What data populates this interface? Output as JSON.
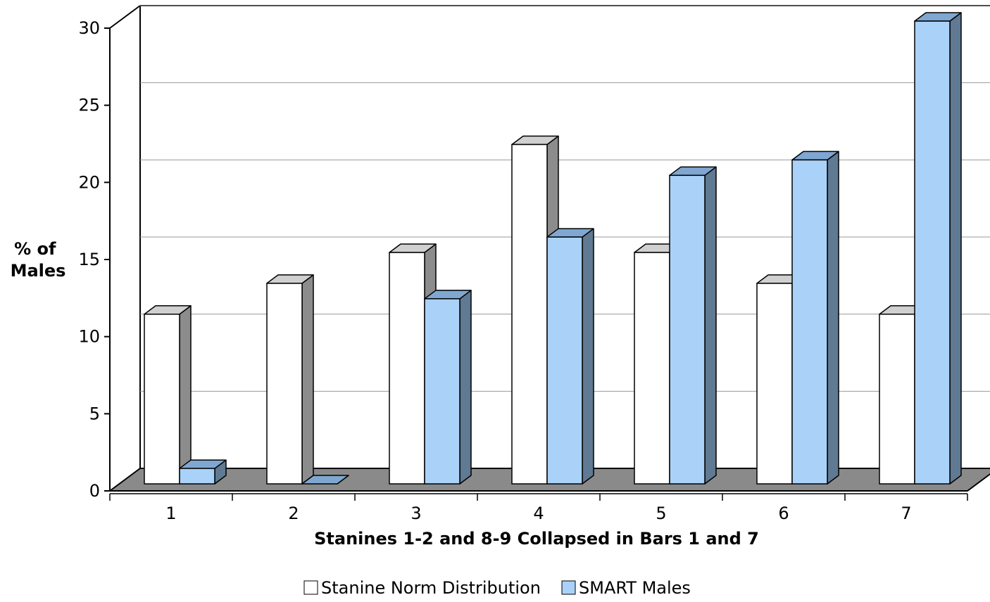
{
  "chart_data": {
    "type": "bar",
    "title": "",
    "xlabel": "Stanines 1-2 and 8-9 Collapsed in Bars 1 and 7",
    "ylabel_lines": [
      "% of",
      "Males"
    ],
    "categories": [
      "1",
      "2",
      "3",
      "4",
      "5",
      "6",
      "7"
    ],
    "ylim": [
      0,
      30
    ],
    "yticks": [
      0,
      5,
      10,
      15,
      20,
      25,
      30
    ],
    "grid": true,
    "three_d": true,
    "legend_position": "bottom",
    "series": [
      {
        "name": "Stanine Norm Distribution",
        "values": [
          11,
          13,
          15,
          22,
          15,
          13,
          11
        ],
        "colors": {
          "front": "#ffffff",
          "side": "#8c8c8c",
          "top": "#d0d0d0"
        }
      },
      {
        "name": "SMART Males",
        "values": [
          1,
          0,
          12,
          16,
          20,
          21,
          30
        ],
        "colors": {
          "front": "#aad2f8",
          "side": "#5f7a92",
          "top": "#7fa7d1"
        }
      }
    ],
    "colors": {
      "floor": "#8a8a8a",
      "grid": "#9a9a9a",
      "axis": "#000000"
    }
  }
}
